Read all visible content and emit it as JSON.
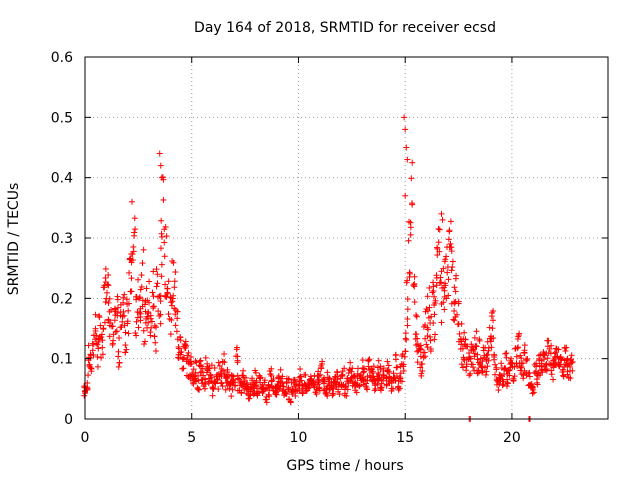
{
  "chart_data": {
    "type": "scatter",
    "title": "Day 164 of 2018, SRMTID for receiver ecsd",
    "xlabel": "GPS time / hours",
    "ylabel": "SRMTID / TECUs",
    "xlim": [
      0,
      24.5
    ],
    "ylim": [
      0,
      0.6
    ],
    "x_ticks": [
      "0",
      "5",
      "10",
      "15",
      "20"
    ],
    "x_tick_values": [
      0,
      5,
      10,
      15,
      20
    ],
    "y_ticks": [
      "0",
      "0.1",
      "0.2",
      "0.3",
      "0.4",
      "0.5",
      "0.6"
    ],
    "y_tick_values": [
      0,
      0.1,
      0.2,
      0.3,
      0.4,
      0.5,
      0.6
    ],
    "grid": true,
    "marker": "+",
    "color": "#ff0000",
    "series": [
      {
        "name": "SRMTID",
        "x": [
          0.0,
          0.1,
          0.2,
          0.3,
          0.4,
          0.5,
          0.6,
          0.7,
          0.8,
          0.9,
          1.0,
          1.1,
          1.2,
          1.3,
          1.4,
          1.5,
          1.6,
          1.7,
          1.8,
          1.9,
          2.0,
          2.1,
          2.2,
          2.3,
          2.4,
          2.5,
          2.6,
          2.7,
          2.8,
          2.9,
          3.0,
          3.1,
          3.2,
          3.3,
          3.4,
          3.5,
          3.6,
          3.7,
          3.8,
          3.9,
          4.0,
          4.1,
          4.2,
          4.3,
          4.4,
          4.5,
          4.6,
          4.7,
          4.8,
          4.9,
          5.0,
          5.1,
          5.2,
          5.3,
          5.4,
          5.5,
          5.6,
          5.7,
          5.8,
          5.9,
          6.0,
          6.1,
          6.2,
          6.3,
          6.4,
          6.5,
          6.6,
          6.7,
          6.8,
          6.9,
          7.0,
          7.1,
          7.2,
          7.3,
          7.4,
          7.5,
          7.6,
          7.7,
          7.8,
          7.9,
          8.0,
          8.1,
          8.2,
          8.3,
          8.4,
          8.5,
          8.6,
          8.7,
          8.8,
          8.9,
          9.0,
          9.1,
          9.2,
          9.3,
          9.4,
          9.5,
          9.6,
          9.7,
          9.8,
          9.9,
          10.0,
          10.1,
          10.2,
          10.3,
          10.4,
          10.5,
          10.6,
          10.7,
          10.8,
          10.9,
          11.0,
          11.1,
          11.2,
          11.3,
          11.4,
          11.5,
          11.6,
          11.7,
          11.8,
          11.9,
          12.0,
          12.1,
          12.2,
          12.3,
          12.4,
          12.5,
          12.6,
          12.7,
          12.8,
          12.9,
          13.0,
          13.1,
          13.2,
          13.3,
          13.4,
          13.5,
          13.6,
          13.7,
          13.8,
          13.9,
          14.0,
          14.1,
          14.2,
          14.3,
          14.4,
          14.5,
          14.6,
          14.7,
          14.8,
          14.9,
          15.0,
          15.1,
          15.2,
          15.3,
          15.4,
          15.5,
          15.6,
          15.7,
          15.8,
          15.9,
          16.0,
          16.1,
          16.2,
          16.3,
          16.4,
          16.5,
          16.6,
          16.7,
          16.8,
          16.9,
          17.0,
          17.1,
          17.2,
          17.3,
          17.4,
          17.5,
          17.6,
          17.7,
          17.8,
          17.9,
          18.0,
          18.1,
          18.2,
          18.3,
          18.4,
          18.5,
          18.6,
          18.7,
          18.8,
          18.9,
          19.0,
          19.1,
          19.2,
          19.3,
          19.4,
          19.5,
          19.6,
          19.7,
          19.8,
          19.9,
          20.0,
          20.1,
          20.2,
          20.3,
          20.4,
          20.5,
          20.6,
          20.7,
          20.8,
          20.9,
          21.0,
          21.1,
          21.2,
          21.3,
          21.4,
          21.5,
          21.6,
          21.7,
          21.8,
          21.9,
          22.0,
          22.1,
          22.2,
          22.3,
          22.4,
          22.5,
          22.6,
          22.7,
          22.8
        ],
        "y": [
          0.045,
          0.06,
          0.1,
          0.09,
          0.13,
          0.15,
          0.11,
          0.14,
          0.12,
          0.19,
          0.25,
          0.2,
          0.17,
          0.13,
          0.15,
          0.18,
          0.11,
          0.16,
          0.2,
          0.14,
          0.18,
          0.22,
          0.25,
          0.3,
          0.17,
          0.19,
          0.2,
          0.24,
          0.16,
          0.18,
          0.19,
          0.15,
          0.21,
          0.14,
          0.22,
          0.18,
          0.29,
          0.33,
          0.26,
          0.21,
          0.18,
          0.22,
          0.2,
          0.16,
          0.12,
          0.13,
          0.1,
          0.11,
          0.09,
          0.08,
          0.09,
          0.07,
          0.08,
          0.06,
          0.08,
          0.07,
          0.06,
          0.09,
          0.07,
          0.08,
          0.05,
          0.07,
          0.06,
          0.08,
          0.07,
          0.09,
          0.06,
          0.07,
          0.05,
          0.06,
          0.07,
          0.1,
          0.06,
          0.05,
          0.07,
          0.06,
          0.05,
          0.04,
          0.06,
          0.05,
          0.07,
          0.05,
          0.06,
          0.05,
          0.06,
          0.04,
          0.05,
          0.07,
          0.06,
          0.04,
          0.05,
          0.06,
          0.07,
          0.05,
          0.05,
          0.06,
          0.04,
          0.05,
          0.06,
          0.05,
          0.06,
          0.07,
          0.05,
          0.06,
          0.05,
          0.06,
          0.07,
          0.06,
          0.05,
          0.07,
          0.06,
          0.08,
          0.06,
          0.05,
          0.07,
          0.06,
          0.05,
          0.06,
          0.07,
          0.05,
          0.06,
          0.07,
          0.05,
          0.06,
          0.08,
          0.07,
          0.06,
          0.05,
          0.07,
          0.06,
          0.08,
          0.07,
          0.06,
          0.09,
          0.07,
          0.08,
          0.06,
          0.07,
          0.08,
          0.06,
          0.07,
          0.06,
          0.08,
          0.07,
          0.06,
          0.07,
          0.09,
          0.06,
          0.08,
          0.1,
          0.12,
          0.2,
          0.28,
          0.35,
          0.22,
          0.15,
          0.12,
          0.1,
          0.09,
          0.13,
          0.15,
          0.18,
          0.14,
          0.2,
          0.17,
          0.24,
          0.26,
          0.2,
          0.21,
          0.22,
          0.26,
          0.3,
          0.24,
          0.18,
          0.2,
          0.16,
          0.13,
          0.11,
          0.12,
          0.1,
          0.09,
          0.11,
          0.1,
          0.12,
          0.09,
          0.11,
          0.08,
          0.1,
          0.09,
          0.11,
          0.13,
          0.15,
          0.09,
          0.07,
          0.06,
          0.08,
          0.07,
          0.09,
          0.07,
          0.08,
          0.09,
          0.08,
          0.1,
          0.12,
          0.09,
          0.08,
          0.1,
          0.09,
          0.07,
          0.06,
          0.05,
          0.08,
          0.07,
          0.09,
          0.08,
          0.1,
          0.09,
          0.11,
          0.1,
          0.08,
          0.09,
          0.1,
          0.11,
          0.09,
          0.08,
          0.1,
          0.09,
          0.08,
          0.1
        ],
        "outliers_x": [
          2.2,
          3.5,
          3.55,
          3.6,
          14.95,
          15.0,
          15.05,
          15.1,
          15.0,
          16.7,
          16.75
        ],
        "outliers_y": [
          0.36,
          0.44,
          0.42,
          0.4,
          0.5,
          0.48,
          0.45,
          0.43,
          0.37,
          0.34,
          0.33
        ],
        "zero_x": [
          18.0,
          20.8
        ],
        "zero_y": [
          0.0,
          0.0
        ]
      }
    ]
  }
}
